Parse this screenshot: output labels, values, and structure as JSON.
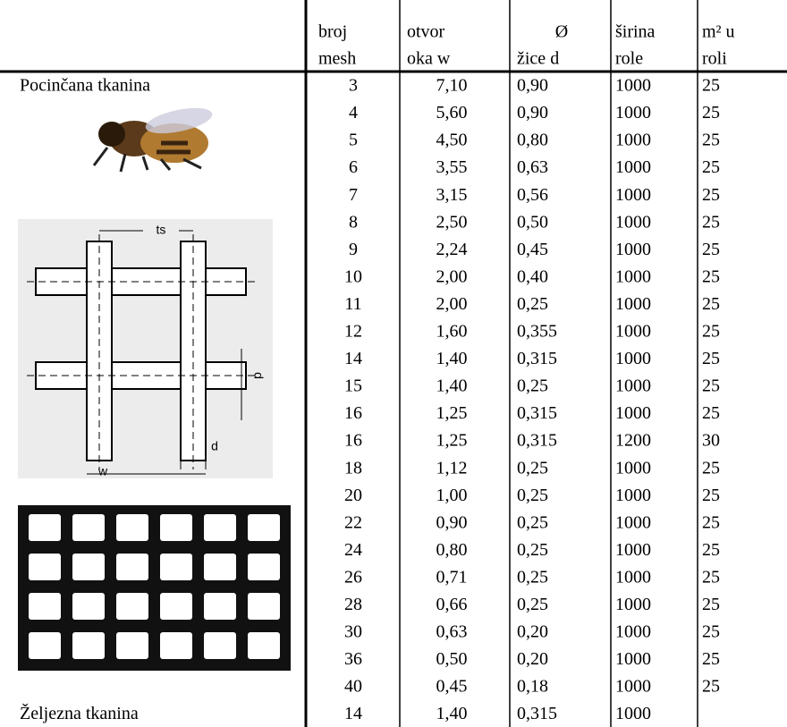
{
  "header": {
    "columns": [
      [
        "broj",
        "mesh"
      ],
      [
        "otvor",
        "oka w"
      ],
      [
        "Ø",
        "žice d"
      ],
      [
        "širina",
        "role"
      ],
      [
        "m² u",
        "roli"
      ]
    ]
  },
  "sections": [
    {
      "label": "Pocinčana tkanina",
      "rows": [
        [
          "3",
          "7,10",
          "0,90",
          "1000",
          "25"
        ],
        [
          "4",
          "5,60",
          "0,90",
          "1000",
          "25"
        ],
        [
          "5",
          "4,50",
          "0,80",
          "1000",
          "25"
        ],
        [
          "6",
          "3,55",
          "0,63",
          "1000",
          "25"
        ],
        [
          "7",
          "3,15",
          "0,56",
          "1000",
          "25"
        ],
        [
          "8",
          "2,50",
          "0,50",
          "1000",
          "25"
        ],
        [
          "9",
          "2,24",
          "0,45",
          "1000",
          "25"
        ],
        [
          "10",
          "2,00",
          "0,40",
          "1000",
          "25"
        ],
        [
          "11",
          "2,00",
          "0,25",
          "1000",
          "25"
        ],
        [
          "12",
          "1,60",
          "0,355",
          "1000",
          "25"
        ],
        [
          "14",
          "1,40",
          "0,315",
          "1000",
          "25"
        ],
        [
          "15",
          "1,40",
          "0,25",
          "1000",
          "25"
        ],
        [
          "16",
          "1,25",
          "0,315",
          "1000",
          "25"
        ],
        [
          "16",
          "1,25",
          "0,315",
          "1200",
          "30"
        ],
        [
          "18",
          "1,12",
          "0,25",
          "1000",
          "25"
        ],
        [
          "20",
          "1,00",
          "0,25",
          "1000",
          "25"
        ],
        [
          "22",
          "0,90",
          "0,25",
          "1000",
          "25"
        ],
        [
          "24",
          "0,80",
          "0,25",
          "1000",
          "25"
        ],
        [
          "26",
          "0,71",
          "0,25",
          "1000",
          "25"
        ],
        [
          "28",
          "0,66",
          "0,25",
          "1000",
          "25"
        ],
        [
          "30",
          "0,63",
          "0,20",
          "1000",
          "25"
        ],
        [
          "36",
          "0,50",
          "0,20",
          "1000",
          "25"
        ],
        [
          "40",
          "0,45",
          "0,18",
          "1000",
          "25"
        ]
      ]
    },
    {
      "label": "Željezna tkanina",
      "rows": [
        [
          "14",
          "1,40",
          "0,315",
          "1000"
        ]
      ]
    }
  ],
  "diagram": {
    "labels": [
      "ts",
      "d",
      "d",
      "w"
    ]
  }
}
